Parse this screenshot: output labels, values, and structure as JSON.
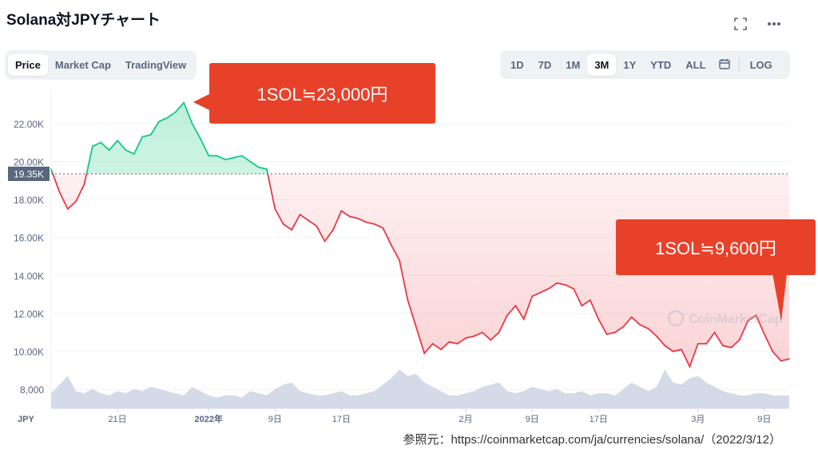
{
  "title": "Solana対JPYチャート",
  "header_icons": {
    "expand": "expand-icon",
    "more": "more-icon"
  },
  "view_tabs": [
    "Price",
    "Market Cap",
    "TradingView"
  ],
  "view_active": "Price",
  "range_tabs": [
    "1D",
    "7D",
    "1M",
    "3M",
    "1Y",
    "YTD",
    "ALL"
  ],
  "range_active": "3M",
  "log_label": "LOG",
  "callout_high": "1SOL≒23,000円",
  "callout_low": "1SOL≒9,600円",
  "source": "参照元：https://coinmarketcap.com/ja/currencies/solana/（2022/3/12）",
  "watermark": "CoinMarketCap",
  "colors": {
    "up": "#16c784",
    "down": "#ea3943",
    "callout": "#e8412a",
    "volume": "#cfd6e4"
  },
  "chart_data": {
    "type": "area",
    "currency_label": "JPY",
    "baseline_value": 19350,
    "baseline_label": "19.35K",
    "y_ticks": [
      8000,
      10000,
      12000,
      14000,
      16000,
      18000,
      20000,
      22000
    ],
    "y_tick_labels": [
      "8,000",
      "10.00K",
      "12.00K",
      "14.00K",
      "16.00K",
      "18.00K",
      "20.00K",
      "22.00K"
    ],
    "y_range": [
      7000,
      23800
    ],
    "x_ticks": [
      "21日",
      "2022年",
      "9日",
      "17日",
      "2月",
      "9日",
      "17日",
      "3月",
      "9日"
    ],
    "x_tick_dates": [
      "2021-12-21",
      "2022-01-01",
      "2022-01-09",
      "2022-01-17",
      "2022-02-01",
      "2022-02-09",
      "2022-02-17",
      "2022-03-01",
      "2022-03-09"
    ],
    "x_range": [
      "2021-12-13",
      "2022-03-12"
    ],
    "price": {
      "dates": [
        "2021-12-13",
        "2021-12-14",
        "2021-12-15",
        "2021-12-16",
        "2021-12-17",
        "2021-12-18",
        "2021-12-19",
        "2021-12-20",
        "2021-12-21",
        "2021-12-22",
        "2021-12-23",
        "2021-12-24",
        "2021-12-25",
        "2021-12-26",
        "2021-12-27",
        "2021-12-28",
        "2021-12-29",
        "2021-12-30",
        "2021-12-31",
        "2022-01-01",
        "2022-01-02",
        "2022-01-03",
        "2022-01-04",
        "2022-01-05",
        "2022-01-06",
        "2022-01-07",
        "2022-01-08",
        "2022-01-09",
        "2022-01-10",
        "2022-01-11",
        "2022-01-12",
        "2022-01-13",
        "2022-01-14",
        "2022-01-15",
        "2022-01-16",
        "2022-01-17",
        "2022-01-18",
        "2022-01-19",
        "2022-01-20",
        "2022-01-21",
        "2022-01-22",
        "2022-01-23",
        "2022-01-24",
        "2022-01-25",
        "2022-01-26",
        "2022-01-27",
        "2022-01-28",
        "2022-01-29",
        "2022-01-30",
        "2022-01-31",
        "2022-02-01",
        "2022-02-02",
        "2022-02-03",
        "2022-02-04",
        "2022-02-05",
        "2022-02-06",
        "2022-02-07",
        "2022-02-08",
        "2022-02-09",
        "2022-02-10",
        "2022-02-11",
        "2022-02-12",
        "2022-02-13",
        "2022-02-14",
        "2022-02-15",
        "2022-02-16",
        "2022-02-17",
        "2022-02-18",
        "2022-02-19",
        "2022-02-20",
        "2022-02-21",
        "2022-02-22",
        "2022-02-23",
        "2022-02-24",
        "2022-02-25",
        "2022-02-26",
        "2022-02-27",
        "2022-02-28",
        "2022-03-01",
        "2022-03-02",
        "2022-03-03",
        "2022-03-04",
        "2022-03-05",
        "2022-03-06",
        "2022-03-07",
        "2022-03-08",
        "2022-03-09",
        "2022-03-10",
        "2022-03-11",
        "2022-03-12"
      ],
      "values": [
        19600,
        18400,
        17500,
        17900,
        18800,
        20800,
        21000,
        20600,
        21100,
        20600,
        20400,
        21300,
        21400,
        22100,
        22300,
        22600,
        23100,
        22000,
        21200,
        20300,
        20300,
        20100,
        20200,
        20300,
        20000,
        19700,
        19600,
        17500,
        16700,
        16400,
        17200,
        16900,
        16600,
        15800,
        16400,
        17400,
        17100,
        17000,
        16800,
        16700,
        16500,
        15600,
        14800,
        12700,
        11300,
        9900,
        10400,
        10100,
        10500,
        10400,
        10700,
        10800,
        11000,
        10600,
        11000,
        11900,
        12400,
        11700,
        12900,
        13100,
        13300,
        13600,
        13500,
        13300,
        12400,
        12700,
        11700,
        10900,
        11000,
        11300,
        11800,
        11400,
        11200,
        10800,
        10300,
        10000,
        10100,
        9200,
        10400,
        10400,
        11000,
        10300,
        10200,
        10600,
        11600,
        11900,
        10900,
        10000,
        9500,
        9600
      ]
    },
    "volume_relative": [
      0.35,
      0.55,
      0.75,
      0.4,
      0.35,
      0.45,
      0.35,
      0.3,
      0.4,
      0.35,
      0.45,
      0.4,
      0.5,
      0.45,
      0.4,
      0.35,
      0.3,
      0.5,
      0.4,
      0.3,
      0.25,
      0.3,
      0.3,
      0.25,
      0.4,
      0.35,
      0.3,
      0.45,
      0.55,
      0.6,
      0.4,
      0.35,
      0.3,
      0.3,
      0.35,
      0.4,
      0.3,
      0.3,
      0.35,
      0.4,
      0.55,
      0.7,
      0.9,
      0.75,
      0.8,
      0.6,
      0.5,
      0.4,
      0.3,
      0.3,
      0.35,
      0.4,
      0.5,
      0.55,
      0.6,
      0.4,
      0.35,
      0.4,
      0.5,
      0.45,
      0.4,
      0.45,
      0.35,
      0.35,
      0.4,
      0.3,
      0.35,
      0.35,
      0.3,
      0.45,
      0.6,
      0.5,
      0.4,
      0.5,
      0.9,
      0.6,
      0.55,
      0.7,
      0.75,
      0.6,
      0.5,
      0.4,
      0.35,
      0.3,
      0.3,
      0.35,
      0.35,
      0.3,
      0.3,
      0.3
    ]
  }
}
